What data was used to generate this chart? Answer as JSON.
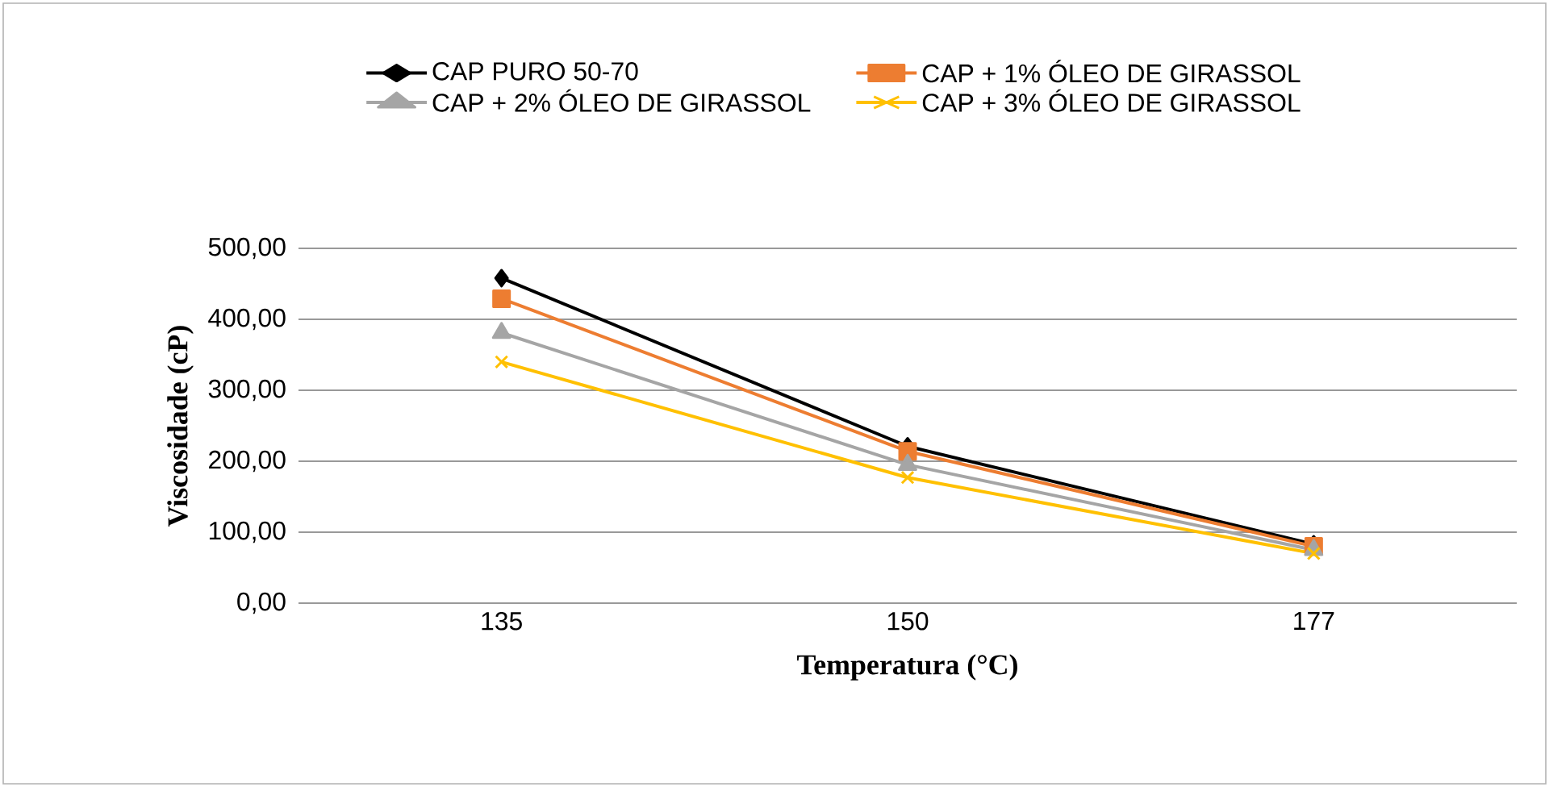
{
  "chart_data": {
    "type": "line",
    "xlabel": "Temperatura (°C)",
    "ylabel": "Viscosidade (cP)",
    "categories": [
      "135",
      "150",
      "177"
    ],
    "series": [
      {
        "name": "CAP PURO 50-70",
        "color": "#000000",
        "marker": "diamond",
        "values": [
          458,
          221,
          83
        ]
      },
      {
        "name": "CAP + 1% ÓLEO DE GIRASSOL",
        "color": "#ed7d31",
        "marker": "square",
        "values": [
          429,
          214,
          80
        ]
      },
      {
        "name": "CAP + 2% ÓLEO DE GIRASSOL",
        "color": "#a5a5a5",
        "marker": "triangle",
        "values": [
          381,
          195,
          75
        ]
      },
      {
        "name": "CAP + 3% ÓLEO DE GIRASSOL",
        "color": "#ffc000",
        "marker": "cross",
        "values": [
          340,
          177,
          70
        ]
      }
    ],
    "ylim": [
      0,
      500
    ],
    "yticks": [
      {
        "value": 0,
        "label": "0,00"
      },
      {
        "value": 100,
        "label": "100,00"
      },
      {
        "value": 200,
        "label": "200,00"
      },
      {
        "value": 300,
        "label": "300,00"
      },
      {
        "value": 400,
        "label": "400,00"
      },
      {
        "value": 500,
        "label": "500,00"
      }
    ],
    "grid": "y",
    "legend": "top",
    "line_style": "solid"
  }
}
